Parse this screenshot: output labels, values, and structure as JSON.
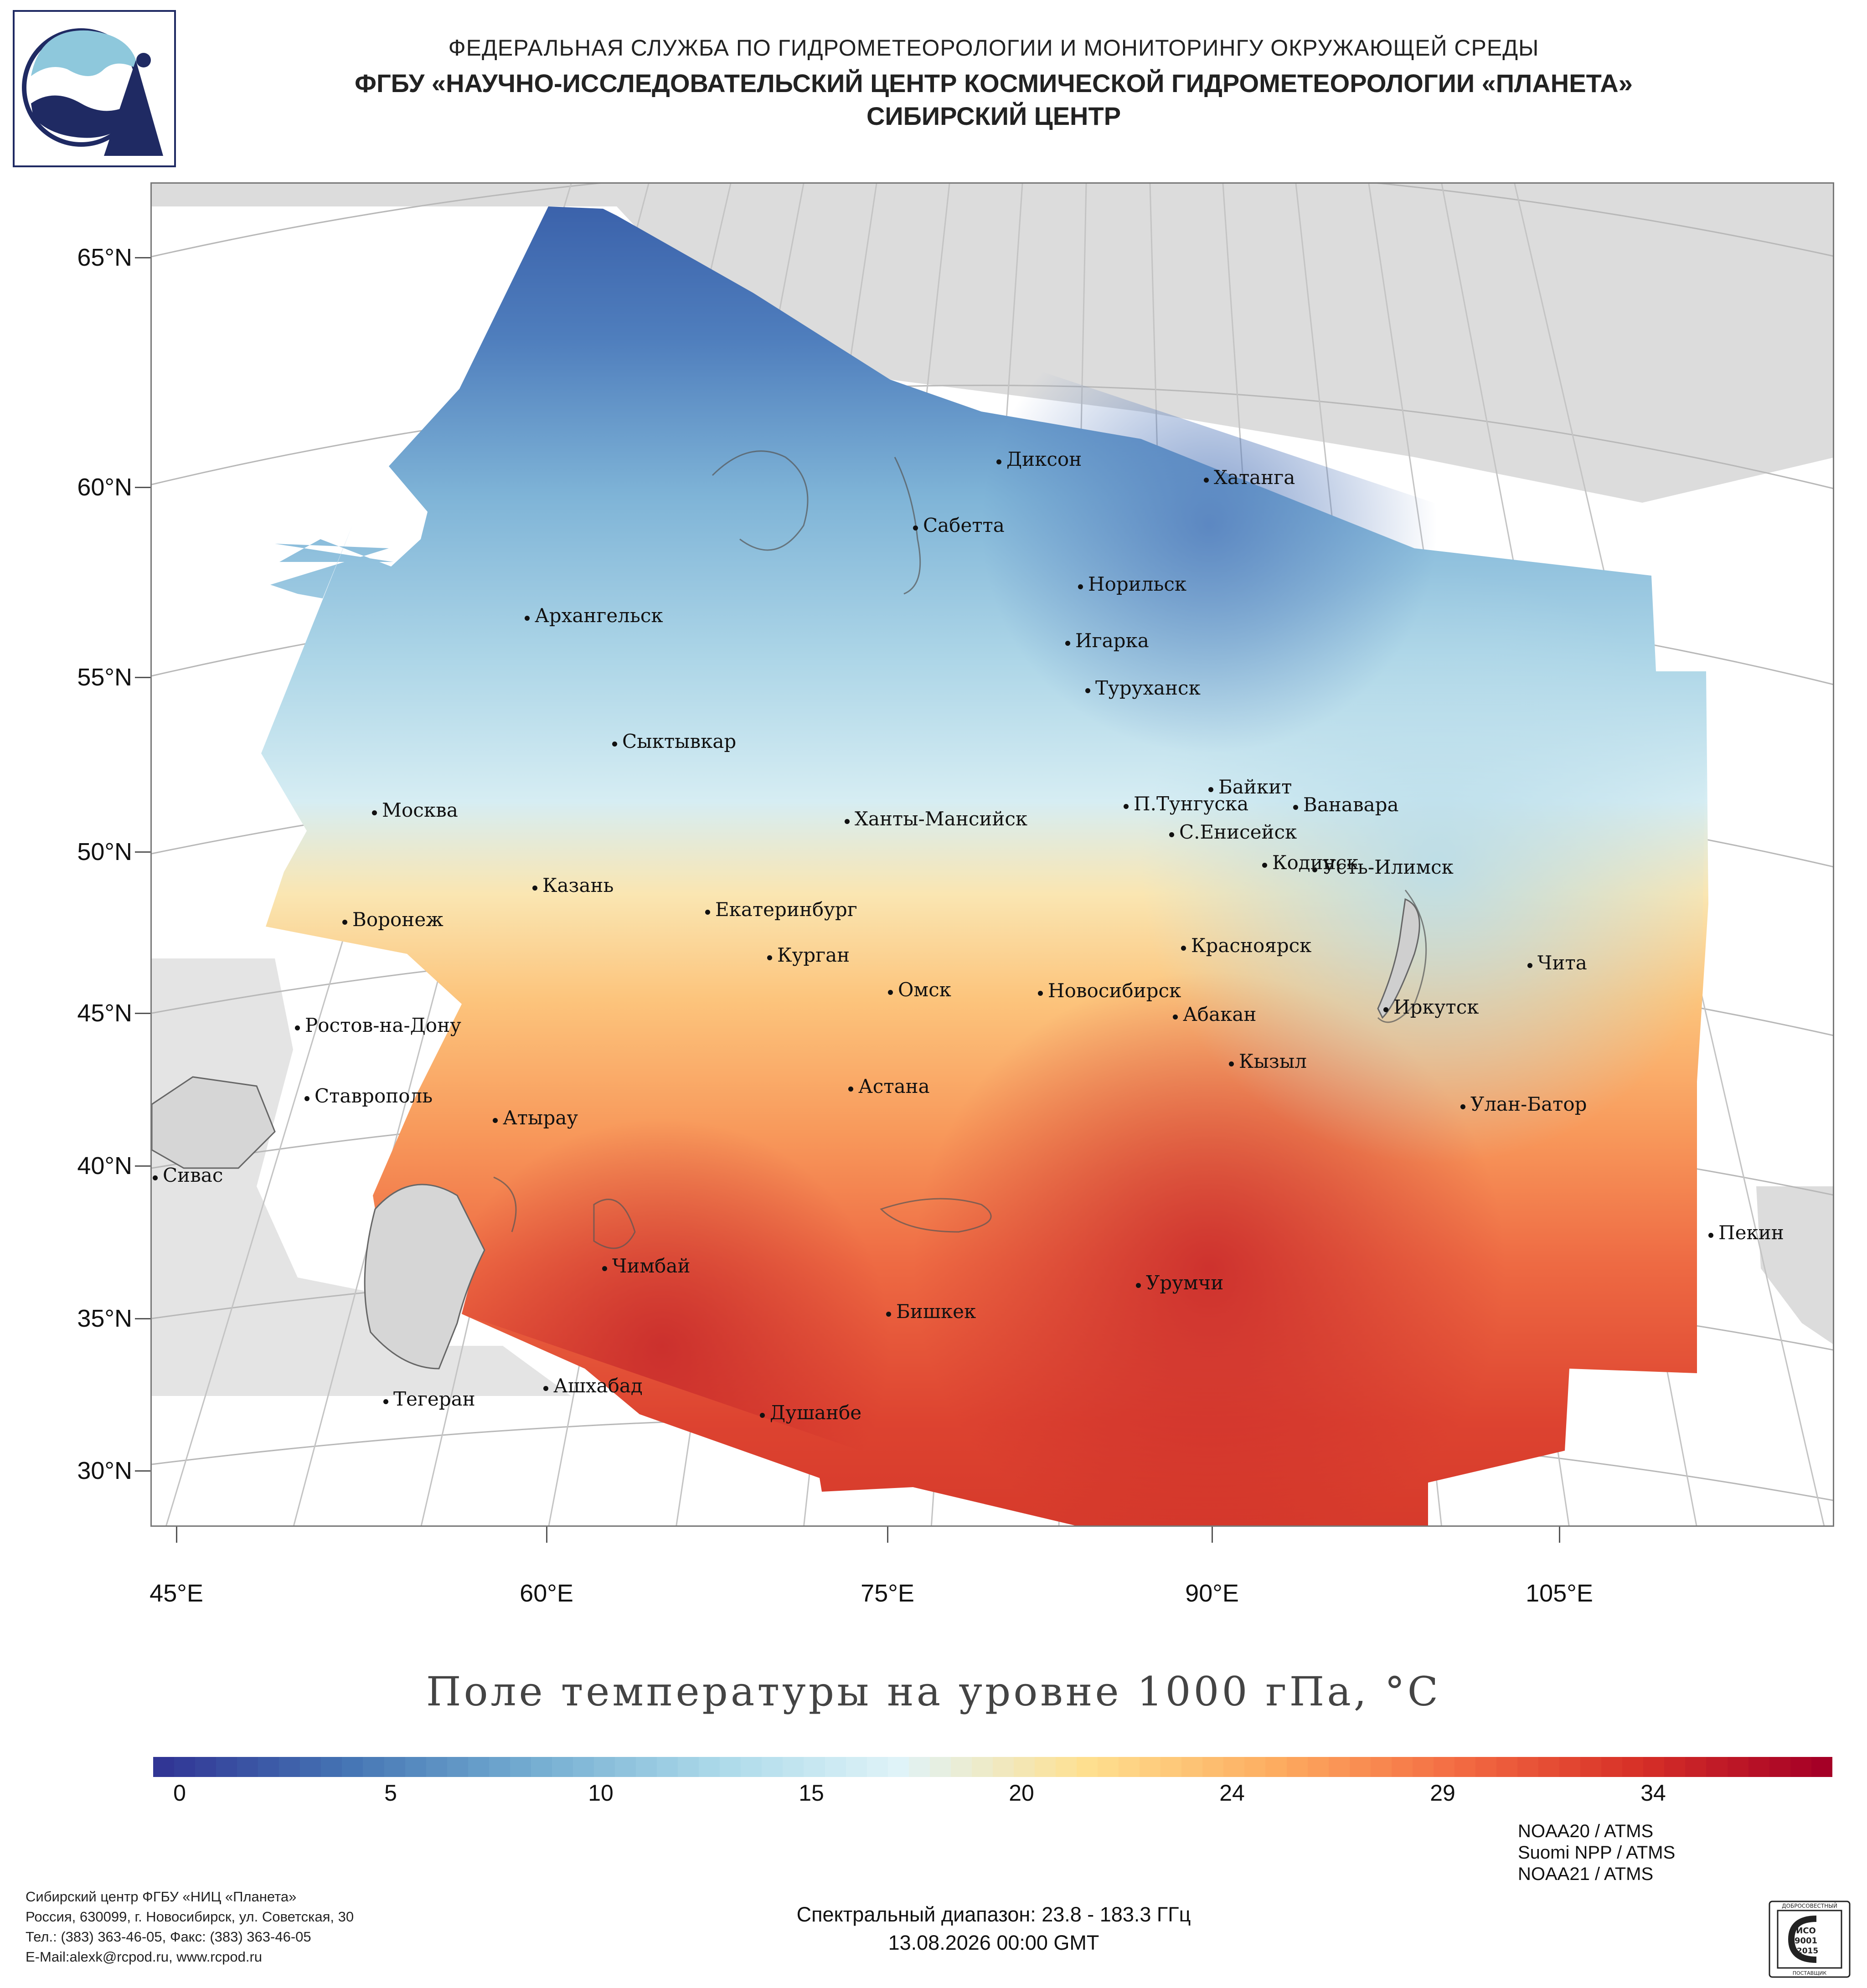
{
  "header": {
    "line1": "ФЕДЕРАЛЬНАЯ СЛУЖБА ПО ГИДРОМЕТЕОРОЛОГИИ И МОНИТОРИНГУ ОКРУЖАЮЩЕЙ СРЕДЫ",
    "line2": "ФГБУ «НАУЧНО-ИССЛЕДОВАТЕЛЬСКИЙ ЦЕНТР КОСМИЧЕСКОЙ ГИДРОМЕТЕОРОЛОГИИ «ПЛАНЕТА»",
    "line3": "СИБИРСКИЙ ЦЕНТР"
  },
  "map": {
    "lat_labels": [
      "65°N",
      "60°N",
      "55°N",
      "50°N",
      "45°N",
      "40°N",
      "35°N",
      "30°N"
    ],
    "lon_labels": [
      "45°E",
      "60°E",
      "75°E",
      "90°E",
      "105°E"
    ],
    "cities": [
      "Диксон",
      "Хатанга",
      "Сабетта",
      "Норильск",
      "Архангельск",
      "Игарка",
      "Туруханск",
      "Сыктывкар",
      "Байкит",
      "Москва",
      "П.Тунгуска",
      "Ванавара",
      "Ханты-Мансийск",
      "С.Енисейск",
      "Казань",
      "Кодинск",
      "Усть-Илимск",
      "Екатеринбург",
      "Воронеж",
      "Красноярск",
      "Курган",
      "Чита",
      "Омск",
      "Новосибирск",
      "Иркутск",
      "Абакан",
      "Ростов-на-Дону",
      "Кызыл",
      "Ставрополь",
      "Астана",
      "Улан-Батор",
      "Атырау",
      "Сивас",
      "Пекин",
      "Чимбай",
      "Урумчи",
      "Бишкек",
      "Ашхабад",
      "Тегеран",
      "Душанбе"
    ]
  },
  "chart_title": "Поле температуры на уровне 1000 гПа, °C",
  "colorbar": {
    "labels": [
      "0",
      "5",
      "10",
      "15",
      "20",
      "24",
      "29",
      "34"
    ],
    "colors": [
      "#313695",
      "#4575b4",
      "#74add1",
      "#abd9e9",
      "#e0f3f8",
      "#fee090",
      "#fdae61",
      "#f46d43",
      "#d73027",
      "#a50026"
    ]
  },
  "footer": {
    "org_line1": "Сибирский центр ФГБУ «НИЦ «Планета»",
    "org_line2": "Россия, 630099, г. Новосибирск, ул. Советская, 30",
    "org_line3": "Тел.: (383) 363-46-05, Факс: (383) 363-46-05",
    "org_line4": "E-Mail:alexk@rcpod.ru, www.rcpod.ru",
    "spectral": "Спектральный диапазон: 23.8 - 183.3 ГГц",
    "datetime": "13.08.2026 00:00 GMT",
    "sensor1": "NOAA20 / ATMS",
    "sensor2": "Suomi NPP / ATMS",
    "sensor3": "NOAA21 / ATMS",
    "iso_top": "ДОБРОСОВЕСТНЫЙ",
    "iso_main": "ИСО",
    "iso_num": "9001",
    "iso_year": "-2015",
    "iso_bottom": "ПОСТАВЩИК"
  }
}
